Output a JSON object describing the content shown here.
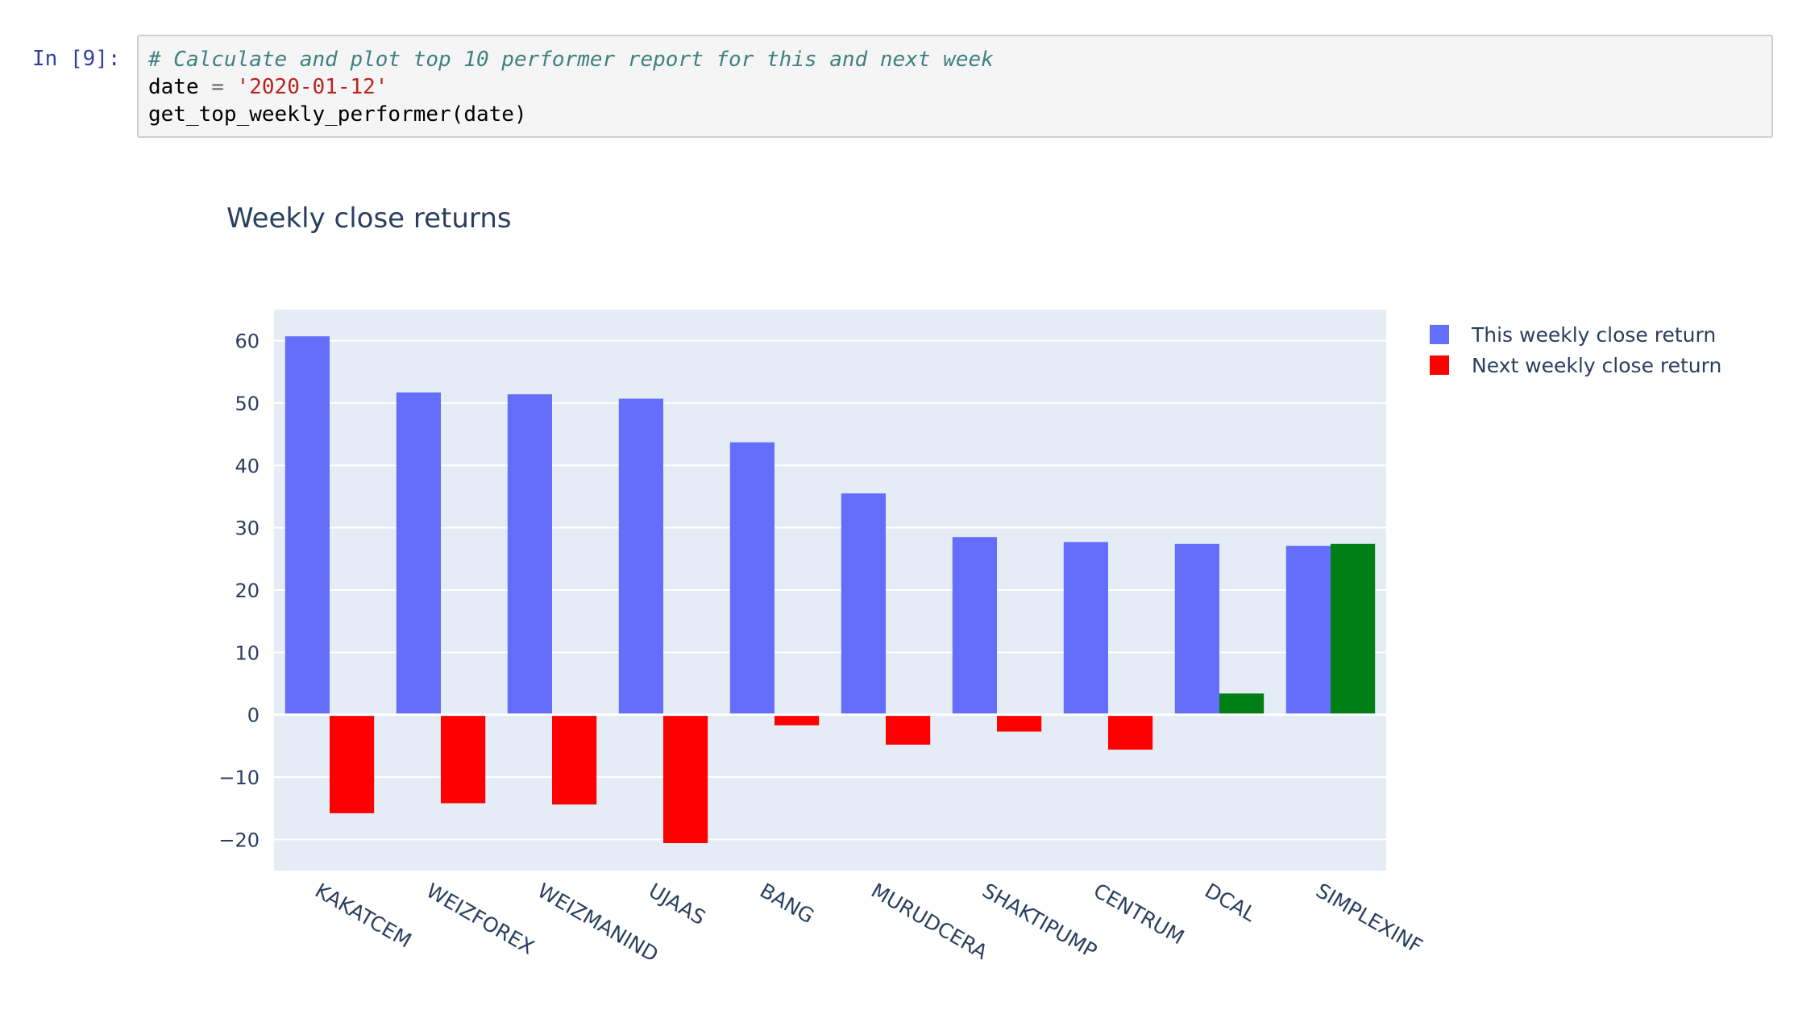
{
  "cell": {
    "prompt": "In [9]:",
    "lines": {
      "comment": "# Calculate and plot top 10 performer report for this and next week",
      "line2_var": "date",
      "line2_op": " = ",
      "line2_str": "'2020-01-12'",
      "line3": "get_top_weekly_performer(date)"
    }
  },
  "colors": {
    "this_week": "#636efa",
    "next_negative": "#ff0000",
    "next_positive": "#007f16",
    "plot_bg": "#e5ecf6",
    "text": "#2a3f5f"
  },
  "chart_data": {
    "type": "bar",
    "title": "Weekly close returns",
    "categories": [
      "KAKATCEM",
      "WEIZFOREX",
      "WEIZMANIND",
      "UJAAS",
      "BANG",
      "MURUDCERA",
      "SHAKTIPUMP",
      "CENTRUM",
      "DCAL",
      "SIMPLEXINF"
    ],
    "series": [
      {
        "name": "This weekly close return",
        "values": [
          60.7,
          51.7,
          51.4,
          50.7,
          43.7,
          35.5,
          28.5,
          27.7,
          27.4,
          27.1
        ]
      },
      {
        "name": "Next weekly close return",
        "values": [
          -15.8,
          -14.2,
          -14.4,
          -20.6,
          -1.7,
          -4.8,
          -2.7,
          -5.6,
          3.4,
          27.4
        ]
      }
    ],
    "ylim": [
      -25,
      65
    ],
    "yticks": [
      -20,
      -10,
      0,
      10,
      20,
      30,
      40,
      50,
      60
    ],
    "ytick_labels": [
      "−20",
      "−10",
      "0",
      "10",
      "20",
      "30",
      "40",
      "50",
      "60"
    ],
    "grid": true,
    "legend_position": "top-right",
    "xlabel": "",
    "ylabel": ""
  }
}
